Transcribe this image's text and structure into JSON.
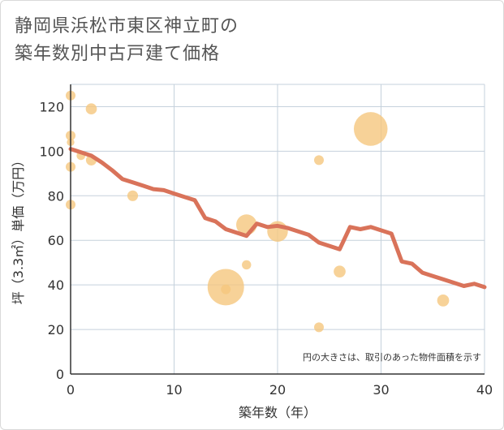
{
  "title_line1": "静岡県浜松市東区神立町の",
  "title_line2": "築年数別中古戸建て価格",
  "chart_data": {
    "type": "scatter",
    "title": "静岡県浜松市東区神立町の築年数別中古戸建て価格",
    "xlabel": "築年数（年）",
    "ylabel": "坪（3.3㎡）単価（万円）",
    "xlim": [
      0,
      40
    ],
    "ylim": [
      0,
      130
    ],
    "x_ticks": [
      0,
      10,
      20,
      30,
      40
    ],
    "y_ticks": [
      0,
      20,
      40,
      60,
      80,
      100,
      120
    ],
    "grid": true,
    "note": "円の大きさは、取引のあった物件面積を示す",
    "colors": {
      "bubble": "#f5c77e",
      "line": "#d9735a",
      "grid": "#c5d1dc"
    },
    "bubbles": [
      {
        "x": 0,
        "y": 125,
        "size": 1
      },
      {
        "x": 0,
        "y": 107,
        "size": 1
      },
      {
        "x": 0,
        "y": 104,
        "size": 0.6
      },
      {
        "x": 0,
        "y": 93,
        "size": 1
      },
      {
        "x": 0,
        "y": 76,
        "size": 1
      },
      {
        "x": 1,
        "y": 98,
        "size": 0.8
      },
      {
        "x": 2,
        "y": 119,
        "size": 1.3
      },
      {
        "x": 2,
        "y": 96,
        "size": 1.2
      },
      {
        "x": 6,
        "y": 80,
        "size": 1.2
      },
      {
        "x": 15,
        "y": 38,
        "size": 1
      },
      {
        "x": 15,
        "y": 39,
        "size": 14
      },
      {
        "x": 17,
        "y": 67,
        "size": 4.5
      },
      {
        "x": 17,
        "y": 49,
        "size": 0.9
      },
      {
        "x": 20,
        "y": 64,
        "size": 4.5
      },
      {
        "x": 24,
        "y": 96,
        "size": 1
      },
      {
        "x": 24,
        "y": 21,
        "size": 1
      },
      {
        "x": 26,
        "y": 46,
        "size": 1.5
      },
      {
        "x": 29,
        "y": 110,
        "size": 12
      },
      {
        "x": 36,
        "y": 33,
        "size": 1.5
      }
    ],
    "line": {
      "x": [
        0,
        1,
        2,
        3,
        4,
        5,
        6,
        7,
        8,
        9,
        10,
        11,
        12,
        13,
        14,
        15,
        16,
        17,
        18,
        19,
        20,
        21,
        22,
        23,
        24,
        25,
        26,
        27,
        28,
        29,
        30,
        31,
        32,
        33,
        34,
        35,
        36,
        37,
        38,
        39,
        40
      ],
      "y": [
        101,
        99.5,
        98,
        95,
        91.5,
        87.5,
        86,
        84.5,
        83,
        82.5,
        81,
        79.5,
        78,
        70,
        68.5,
        65,
        63.5,
        62,
        67.5,
        66,
        66.5,
        65.5,
        64,
        62.5,
        59,
        57.5,
        56,
        66,
        65,
        66,
        64.5,
        63,
        50.5,
        49.5,
        45.5,
        44,
        42.5,
        41,
        39.5,
        40.5,
        39
      ]
    }
  }
}
